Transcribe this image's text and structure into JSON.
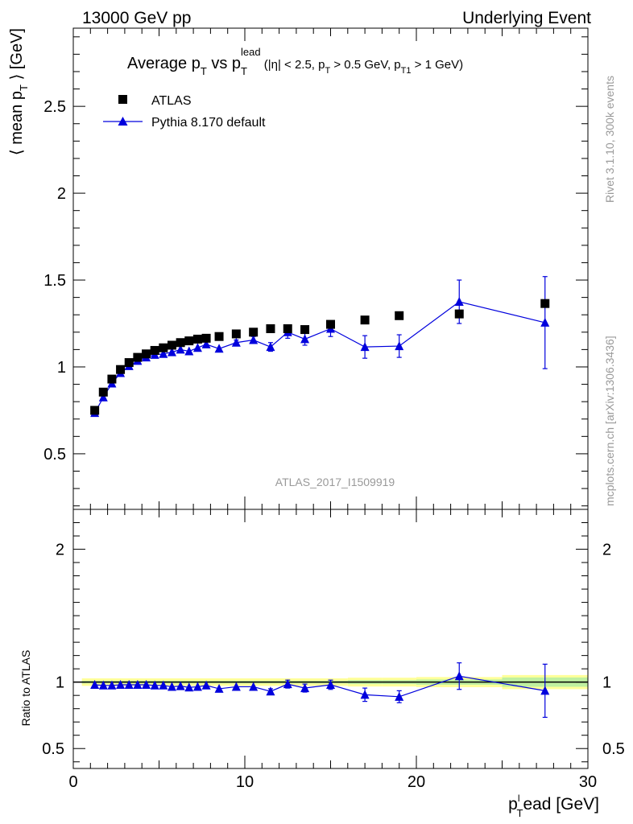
{
  "header": {
    "left": "13000 GeV pp",
    "right": "Underlying Event"
  },
  "side": {
    "rivet": "Rivet 3.1.10,  300k events",
    "mcplots": "mcplots.cern.ch [arXiv:1306.3436]"
  },
  "watermark": "ATLAS_2017_I1509919",
  "chart_data": [
    {
      "type": "scatter",
      "title": "Average p_T vs p_T^lead (|η| < 2.5, p_T > 0.5 GeV, p_T1 > 1 GeV)",
      "title_parts": {
        "main": "Average p",
        "t1": "T",
        "vs": " vs p",
        "lead": "lead",
        "t2": "T",
        "cuts_a": " (|η| < 2.5, p",
        "t3": "T",
        "cuts_b": " > 0.5 GeV, p",
        "t4": "T1",
        "cuts_c": " > 1 GeV)"
      },
      "ylabel": "⟨ mean p_T ⟩ [GeV]",
      "ylabel_parts": {
        "a": "⟨ mean p",
        "sub": "T",
        "b": " ⟩ [GeV]"
      },
      "xlim": [
        0,
        30
      ],
      "ylim": [
        0.18,
        2.95
      ],
      "yticks": [
        0.5,
        1,
        1.5,
        2,
        2.5
      ],
      "ytick_labels": [
        "0.5",
        "1",
        "1.5",
        "2",
        "2.5"
      ],
      "legend": {
        "position": "top-left",
        "entries": [
          "ATLAS",
          "Pythia 8.170 default"
        ]
      },
      "series": [
        {
          "name": "ATLAS",
          "color": "#000000",
          "marker": "square",
          "x": [
            1.25,
            1.75,
            2.25,
            2.75,
            3.25,
            3.75,
            4.25,
            4.75,
            5.25,
            5.75,
            6.25,
            6.75,
            7.25,
            7.75,
            8.5,
            9.5,
            10.5,
            11.5,
            12.5,
            13.5,
            15,
            17,
            19,
            22.5,
            27.5
          ],
          "y": [
            0.75,
            0.855,
            0.93,
            0.985,
            1.025,
            1.055,
            1.075,
            1.095,
            1.11,
            1.125,
            1.14,
            1.15,
            1.16,
            1.165,
            1.175,
            1.19,
            1.2,
            1.22,
            1.22,
            1.215,
            1.245,
            1.27,
            1.295,
            1.305,
            1.365
          ],
          "yerr": [
            0,
            0,
            0,
            0,
            0,
            0,
            0,
            0,
            0,
            0,
            0,
            0,
            0,
            0,
            0,
            0,
            0,
            0,
            0,
            0,
            0,
            0,
            0,
            0,
            0
          ]
        },
        {
          "name": "Pythia 8.170 default",
          "color": "#0000dd",
          "marker": "triangle",
          "x": [
            1.25,
            1.75,
            2.25,
            2.75,
            3.25,
            3.75,
            4.25,
            4.75,
            5.25,
            5.75,
            6.25,
            6.75,
            7.25,
            7.75,
            8.5,
            9.5,
            10.5,
            11.5,
            12.5,
            13.5,
            15,
            17,
            19,
            22.5,
            27.5
          ],
          "y": [
            0.735,
            0.825,
            0.905,
            0.965,
            1.005,
            1.035,
            1.055,
            1.07,
            1.075,
            1.085,
            1.1,
            1.09,
            1.11,
            1.13,
            1.105,
            1.14,
            1.155,
            1.115,
            1.2,
            1.16,
            1.22,
            1.115,
            1.12,
            1.375,
            1.255
          ],
          "yerr": [
            0.005,
            0.005,
            0.005,
            0.005,
            0.005,
            0.005,
            0.005,
            0.005,
            0.005,
            0.005,
            0.005,
            0.005,
            0.005,
            0.005,
            0.01,
            0.015,
            0.02,
            0.025,
            0.035,
            0.035,
            0.045,
            0.065,
            0.065,
            0.125,
            0.265
          ]
        }
      ]
    },
    {
      "type": "scatter",
      "ylabel": "Ratio to ATLAS",
      "xlabel": "p_T^lead [GeV]",
      "xlabel_parts": {
        "a": "p",
        "sup": "l",
        "sub": "T",
        "b": "ead [GeV]"
      },
      "xlim": [
        0,
        30
      ],
      "ylim": [
        0.35,
        2.3
      ],
      "xticks": [
        0,
        10,
        20,
        30
      ],
      "xtick_labels": [
        "0",
        "10",
        "20",
        "30"
      ],
      "yticks": [
        0.5,
        1,
        2
      ],
      "ytick_labels": [
        "0.5",
        "1",
        "2"
      ],
      "reference_line": 1,
      "band": [
        {
          "x0": 0.5,
          "x1": 16,
          "lo": 0.99,
          "hi": 1.01
        },
        {
          "x0": 16,
          "x1": 18,
          "lo": 0.985,
          "hi": 1.015
        },
        {
          "x0": 18,
          "x1": 20,
          "lo": 0.985,
          "hi": 1.015
        },
        {
          "x0": 20,
          "x1": 25,
          "lo": 0.98,
          "hi": 1.02
        },
        {
          "x0": 25,
          "x1": 30,
          "lo": 0.965,
          "hi": 1.035
        }
      ],
      "series": [
        {
          "name": "Pythia 8.170 default",
          "color": "#0000dd",
          "marker": "triangle",
          "x": [
            1.25,
            1.75,
            2.25,
            2.75,
            3.25,
            3.75,
            4.25,
            4.75,
            5.25,
            5.75,
            6.25,
            6.75,
            7.25,
            7.75,
            8.5,
            9.5,
            10.5,
            11.5,
            12.5,
            13.5,
            15,
            17,
            19,
            22.5,
            27.5
          ],
          "y": [
            0.98,
            0.975,
            0.975,
            0.98,
            0.98,
            0.98,
            0.98,
            0.975,
            0.975,
            0.965,
            0.97,
            0.96,
            0.965,
            0.975,
            0.95,
            0.965,
            0.965,
            0.93,
            0.985,
            0.955,
            0.98,
            0.905,
            0.89,
            1.045,
            0.935
          ],
          "yerr": [
            0.005,
            0.005,
            0.005,
            0.005,
            0.005,
            0.005,
            0.005,
            0.005,
            0.005,
            0.005,
            0.005,
            0.005,
            0.005,
            0.005,
            0.01,
            0.01,
            0.015,
            0.02,
            0.03,
            0.03,
            0.035,
            0.05,
            0.045,
            0.1,
            0.2
          ]
        }
      ]
    }
  ]
}
